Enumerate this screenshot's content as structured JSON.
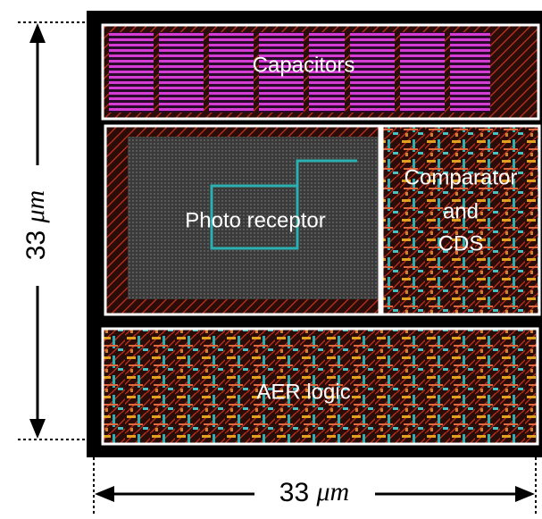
{
  "blocks": [
    {
      "label": "Capacitors"
    },
    {
      "label": "Photo receptor"
    },
    {
      "lines": [
        "Comparator",
        "and",
        "CDS"
      ]
    },
    {
      "label": "AER logic"
    }
  ],
  "dimensions": {
    "vertical": {
      "value": "33",
      "unit": "μm"
    },
    "horizontal": {
      "value": "33",
      "unit": "μm"
    }
  }
}
